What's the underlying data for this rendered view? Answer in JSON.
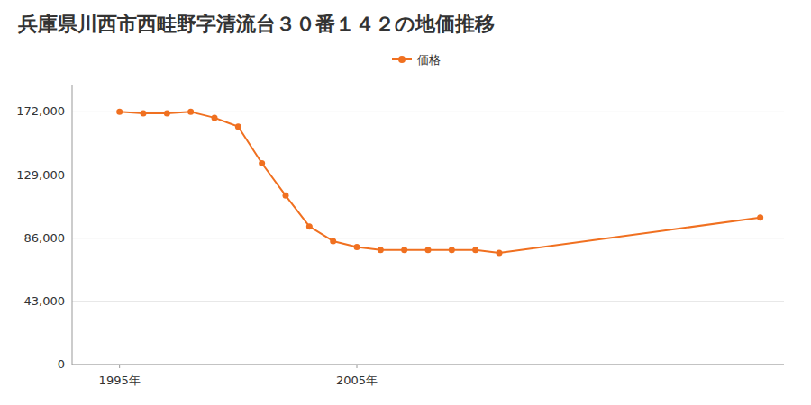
{
  "chart_data": {
    "type": "line",
    "title": "兵庫県川西市西畦野字清流台３０番１４２の地価推移",
    "x": [
      1995,
      1996,
      1997,
      1998,
      1999,
      2000,
      2001,
      2002,
      2003,
      2004,
      2005,
      2006,
      2007,
      2008,
      2009,
      2010,
      2011,
      2022
    ],
    "series": [
      {
        "name": "価格",
        "color": "#f07020",
        "marker": "circle",
        "values": [
          172000,
          171000,
          171000,
          172000,
          168000,
          162000,
          137000,
          115000,
          94000,
          84000,
          80000,
          78000,
          78000,
          78000,
          78000,
          78000,
          76000,
          100000
        ]
      }
    ],
    "xlim": [
      1993,
      2023
    ],
    "xticks": [
      {
        "value": 1995,
        "label": "1995年"
      },
      {
        "value": 2005,
        "label": "2005年"
      }
    ],
    "ylim": [
      0,
      190000
    ],
    "yticks": [
      0,
      {
        "value": 43000,
        "label": "43,000"
      },
      {
        "value": 86000,
        "label": "86,000"
      },
      {
        "value": 129000,
        "label": "129,000"
      },
      {
        "value": 172000,
        "label": "172,000"
      }
    ],
    "grid": true,
    "legend": "top"
  }
}
